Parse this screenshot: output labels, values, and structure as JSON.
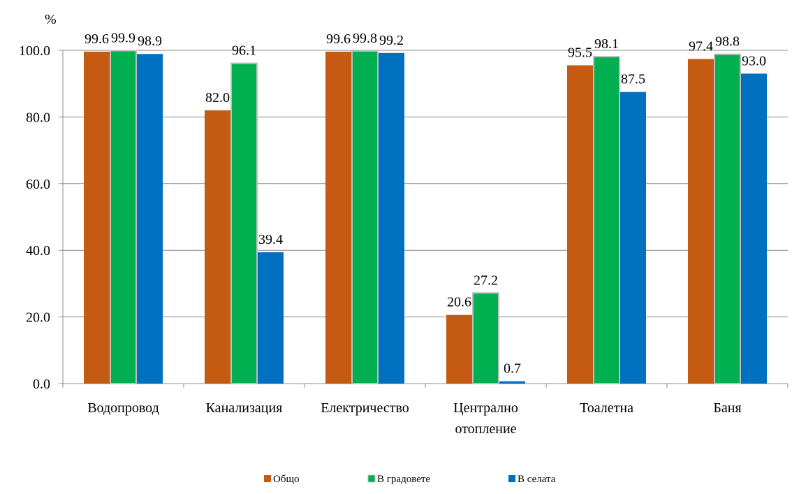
{
  "chart_data": {
    "type": "bar",
    "ylabel": "%",
    "ylim": [
      0,
      100
    ],
    "yticks": [
      0,
      20,
      40,
      60,
      80,
      100
    ],
    "ytick_labels": [
      "0.0",
      "20.0",
      "40.0",
      "60.0",
      "80.0",
      "100.0"
    ],
    "grid": true,
    "legend_position": "bottom",
    "categories": [
      [
        "Водопровод"
      ],
      [
        "Канализация"
      ],
      [
        "Електричество"
      ],
      [
        "Централно",
        "отопление"
      ],
      [
        "Тоалетна"
      ],
      [
        "Баня"
      ]
    ],
    "series": [
      {
        "name": "Общо",
        "color": "#C55A11",
        "values": [
          99.6,
          82.0,
          99.6,
          20.6,
          95.5,
          97.4
        ],
        "labels": [
          "99.6",
          "82.0",
          "99.6",
          "20.6",
          "95.5",
          "97.4"
        ]
      },
      {
        "name": "В градовете",
        "color": "#00B050",
        "values": [
          99.9,
          96.1,
          99.8,
          27.2,
          98.1,
          98.8
        ],
        "labels": [
          "99.9",
          "96.1",
          "99.8",
          "27.2",
          "98.1",
          "98.8"
        ]
      },
      {
        "name": "В селата",
        "color": "#0070C0",
        "values": [
          98.9,
          39.4,
          99.2,
          0.7,
          87.5,
          93.0
        ],
        "labels": [
          "98.9",
          "39.4",
          "99.2",
          "0.7",
          "87.5",
          "93.0"
        ]
      }
    ]
  }
}
